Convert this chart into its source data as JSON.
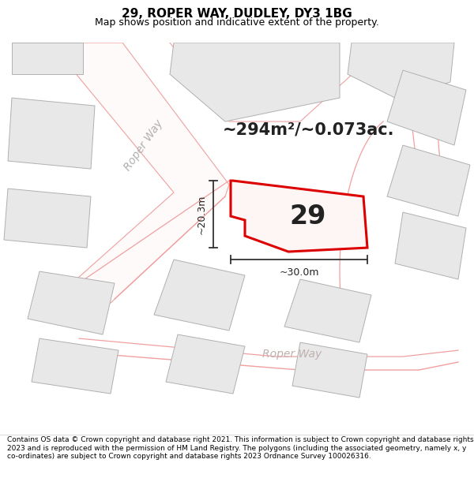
{
  "title": "29, ROPER WAY, DUDLEY, DY3 1BG",
  "subtitle": "Map shows position and indicative extent of the property.",
  "area_text": "~294m²/~0.073ac.",
  "label": "29",
  "dim_width": "~30.0m",
  "dim_height": "~20.3m",
  "footer": "Contains OS data © Crown copyright and database right 2021. This information is subject to Crown copyright and database rights 2023 and is reproduced with the permission of HM Land Registry. The polygons (including the associated geometry, namely x, y co-ordinates) are subject to Crown copyright and database rights 2023 Ordnance Survey 100026316.",
  "map_bg": "#ffffff",
  "building_fill": "#e8e8e8",
  "building_edge": "#b0b0b0",
  "road_line": "#f0a0a0",
  "road_fill": "#f8e8e8",
  "highlight_color": "#dd0000",
  "text_dark": "#222222",
  "text_gray": "#aaaaaa",
  "title_color": "#000000",
  "footer_color": "#000000",
  "title_fontsize": 11,
  "subtitle_fontsize": 9,
  "area_fontsize": 15,
  "label_fontsize": 24,
  "dim_fontsize": 9,
  "road_label_fontsize": 10,
  "footer_fontsize": 6.5
}
